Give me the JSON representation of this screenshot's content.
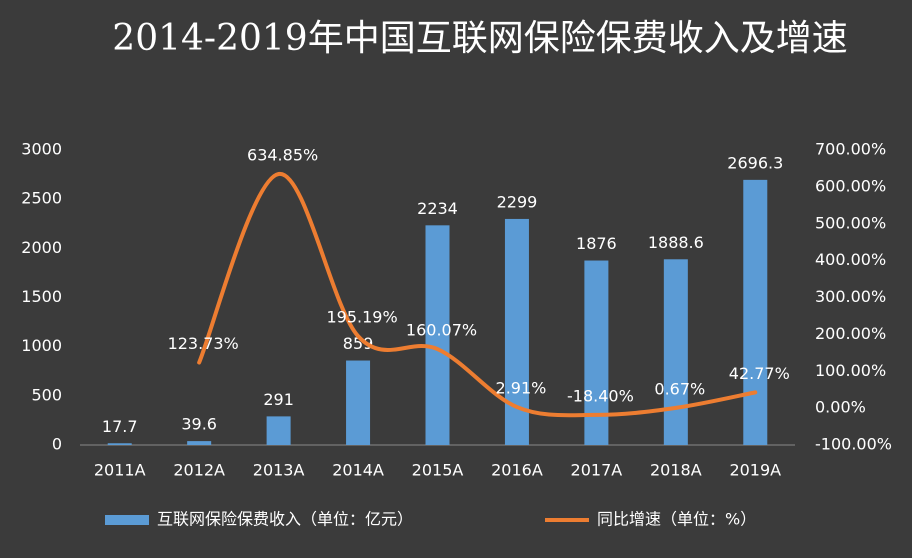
{
  "chart_data": {
    "type": "bar+line",
    "title": "2014-2019年中国互联网保险保费收入及增速",
    "categories": [
      "2011A",
      "2012A",
      "2013A",
      "2014A",
      "2015A",
      "2016A",
      "2017A",
      "2018A",
      "2019A"
    ],
    "series": [
      {
        "name": "互联网保险保费收入（单位：亿元）",
        "type": "bar",
        "color": "#5b9bd5",
        "values": [
          17.7,
          39.6,
          291,
          859,
          2234,
          2299,
          1876,
          1888.6,
          2696.3
        ]
      },
      {
        "name": "同比增速（单位：%）",
        "type": "line",
        "color": "#ed7d31",
        "axis": "y2",
        "smooth": true,
        "values": [
          null,
          123.73,
          634.85,
          195.19,
          160.07,
          2.91,
          -18.4,
          0.67,
          42.77
        ],
        "value_labels": [
          null,
          "123.73%",
          "634.85%",
          "195.19%",
          "160.07%",
          "2.91%",
          "-18.40%",
          "0.67%",
          "42.77%"
        ]
      }
    ],
    "ylim": [
      0,
      3000
    ],
    "yticks": [
      0,
      500,
      1000,
      1500,
      2000,
      2500,
      3000
    ],
    "y2lim": [
      -100,
      700
    ],
    "y2ticks": [
      {
        "value": -100,
        "label": "-100.00%"
      },
      {
        "value": 0,
        "label": "0.00%"
      },
      {
        "value": 100,
        "label": "100.00%"
      },
      {
        "value": 200,
        "label": "200.00%"
      },
      {
        "value": 300,
        "label": "300.00%"
      },
      {
        "value": 400,
        "label": "400.00%"
      },
      {
        "value": 500,
        "label": "500.00%"
      },
      {
        "value": 600,
        "label": "600.00%"
      },
      {
        "value": 700,
        "label": "700.00%"
      }
    ],
    "grid": false,
    "legend": "bottom"
  }
}
